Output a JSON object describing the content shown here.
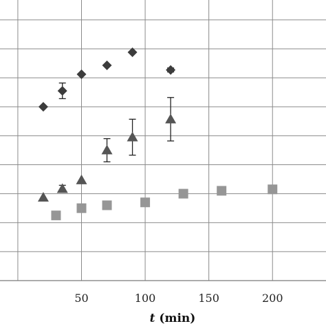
{
  "chart_data": {
    "type": "scatter",
    "title": "",
    "xlabel": {
      "variable": "t",
      "unit": " (min)"
    },
    "ylabel": "",
    "xlim": [
      -14,
      242
    ],
    "ylim": [
      0,
      9.4
    ],
    "x_ticks": [
      50,
      100,
      150,
      200
    ],
    "x_gridlines": [
      0,
      50,
      100,
      150,
      200
    ],
    "y_gridlines": [
      1,
      2,
      3,
      4,
      5,
      6,
      7,
      8,
      9
    ],
    "grid": true,
    "legend": "none",
    "series": [
      {
        "marker": "diamond",
        "color": "#3c3c3c",
        "points": [
          {
            "x": 20,
            "y": 6.0
          },
          {
            "x": 35,
            "y": 6.55,
            "err": 0.27
          },
          {
            "x": 50,
            "y": 7.12
          },
          {
            "x": 70,
            "y": 7.43
          },
          {
            "x": 90,
            "y": 7.88
          },
          {
            "x": 120,
            "y": 7.27,
            "err": 0.07
          }
        ]
      },
      {
        "marker": "triangle",
        "color": "#555555",
        "points": [
          {
            "x": 20,
            "y": 2.87
          },
          {
            "x": 35,
            "y": 3.17,
            "err": 0.12
          },
          {
            "x": 50,
            "y": 3.47
          },
          {
            "x": 70,
            "y": 4.5,
            "err": 0.4
          },
          {
            "x": 90,
            "y": 4.95,
            "err": 0.62
          },
          {
            "x": 120,
            "y": 5.57,
            "err": 0.75
          }
        ]
      },
      {
        "marker": "square",
        "color": "#969696",
        "points": [
          {
            "x": 30,
            "y": 2.25
          },
          {
            "x": 50,
            "y": 2.5
          },
          {
            "x": 70,
            "y": 2.6
          },
          {
            "x": 100,
            "y": 2.7
          },
          {
            "x": 130,
            "y": 3.0
          },
          {
            "x": 160,
            "y": 3.1
          },
          {
            "x": 200,
            "y": 3.15
          }
        ]
      }
    ]
  }
}
